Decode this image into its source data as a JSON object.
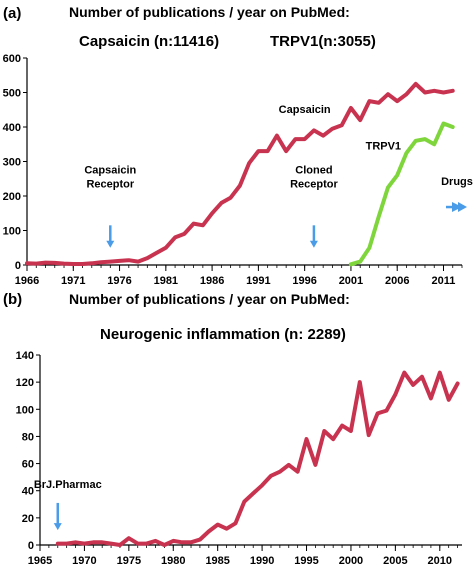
{
  "colors": {
    "capsaicin": "#c8334f",
    "trpv1": "#7fd63c",
    "arrow": "#4a9be8",
    "axis": "#000000"
  },
  "panel_a": {
    "letter": "(a)",
    "title": "Number of publications / year on PubMed:",
    "subtitle_left": "Capsaicin  (n:11416)",
    "subtitle_right": "TRPV1(n:3055)"
  },
  "panel_b": {
    "letter": "(b)",
    "title": "Number of publications / year on PubMed:",
    "subtitle": "Neurogenic inflammation (n: 2289)"
  },
  "chart_data": [
    {
      "type": "line",
      "title": "Number of publications / year on PubMed:",
      "xlim": [
        1966,
        2013
      ],
      "ylim": [
        0,
        600
      ],
      "xticks": [
        1966,
        1971,
        1976,
        1981,
        1986,
        1991,
        1996,
        2001,
        2006,
        2011
      ],
      "yticks": [
        0,
        100,
        200,
        300,
        400,
        500,
        600
      ],
      "grid": false,
      "series": [
        {
          "name": "Capsaicin",
          "color": "#c8334f",
          "x": [
            1966,
            1967,
            1968,
            1969,
            1970,
            1971,
            1972,
            1973,
            1974,
            1975,
            1976,
            1977,
            1978,
            1979,
            1980,
            1981,
            1982,
            1983,
            1984,
            1985,
            1986,
            1987,
            1988,
            1989,
            1990,
            1991,
            1992,
            1993,
            1994,
            1995,
            1996,
            1997,
            1998,
            1999,
            2000,
            2001,
            2002,
            2003,
            2004,
            2005,
            2006,
            2007,
            2008,
            2009,
            2010,
            2011,
            2012
          ],
          "values": [
            5,
            4,
            7,
            6,
            4,
            3,
            3,
            5,
            8,
            10,
            12,
            14,
            10,
            20,
            35,
            50,
            80,
            90,
            120,
            115,
            150,
            180,
            195,
            230,
            295,
            330,
            330,
            375,
            330,
            365,
            365,
            390,
            375,
            395,
            405,
            455,
            420,
            475,
            470,
            495,
            475,
            495,
            525,
            500,
            505,
            500,
            505
          ]
        },
        {
          "name": "TRPV1",
          "color": "#7fd63c",
          "x": [
            2001,
            2002,
            2003,
            2004,
            2005,
            2006,
            2007,
            2008,
            2009,
            2010,
            2011,
            2012
          ],
          "values": [
            2,
            10,
            50,
            140,
            225,
            260,
            325,
            360,
            365,
            350,
            410,
            400
          ]
        }
      ],
      "annotations": [
        {
          "text_lines": [
            "Capsaicin",
            "Receptor"
          ],
          "x": 1975,
          "arrow": "down"
        },
        {
          "text_lines": [
            "Cloned",
            "Receptor"
          ],
          "x": 1997,
          "arrow": "down"
        },
        {
          "text_lines": [
            "Drugs"
          ],
          "x": 2012,
          "arrow": "right"
        }
      ]
    },
    {
      "type": "line",
      "title": "Number of publications / year on PubMed:",
      "subtitle": "Neurogenic inflammation (n: 2289)",
      "xlim": [
        1965,
        2012.5
      ],
      "ylim": [
        0,
        140
      ],
      "xticks": [
        1965,
        1970,
        1975,
        1980,
        1985,
        1990,
        1995,
        2000,
        2005,
        2010
      ],
      "yticks": [
        0,
        20,
        40,
        60,
        80,
        100,
        120,
        140
      ],
      "grid": false,
      "series": [
        {
          "name": "",
          "color": "#c8334f",
          "x": [
            1967,
            1968,
            1969,
            1970,
            1971,
            1972,
            1973,
            1974,
            1975,
            1976,
            1977,
            1978,
            1979,
            1980,
            1981,
            1982,
            1983,
            1984,
            1985,
            1986,
            1987,
            1988,
            1989,
            1990,
            1991,
            1992,
            1993,
            1994,
            1995,
            1996,
            1997,
            1998,
            1999,
            2000,
            2001,
            2002,
            2003,
            2004,
            2005,
            2006,
            2007,
            2008,
            2009,
            2010,
            2011,
            2012
          ],
          "values": [
            1,
            1,
            2,
            1,
            2,
            2,
            1,
            0,
            5,
            1,
            1,
            3,
            0,
            3,
            2,
            2,
            4,
            10,
            15,
            12,
            16,
            32,
            38,
            44,
            51,
            54,
            59,
            54,
            78,
            59,
            84,
            78,
            88,
            84,
            120,
            81,
            97,
            99,
            111,
            127,
            118,
            124,
            108,
            127,
            107,
            119
          ]
        }
      ],
      "annotations": [
        {
          "text_lines": [
            "BrJ.Pharmac"
          ],
          "x": 1967,
          "arrow": "down"
        }
      ]
    }
  ]
}
